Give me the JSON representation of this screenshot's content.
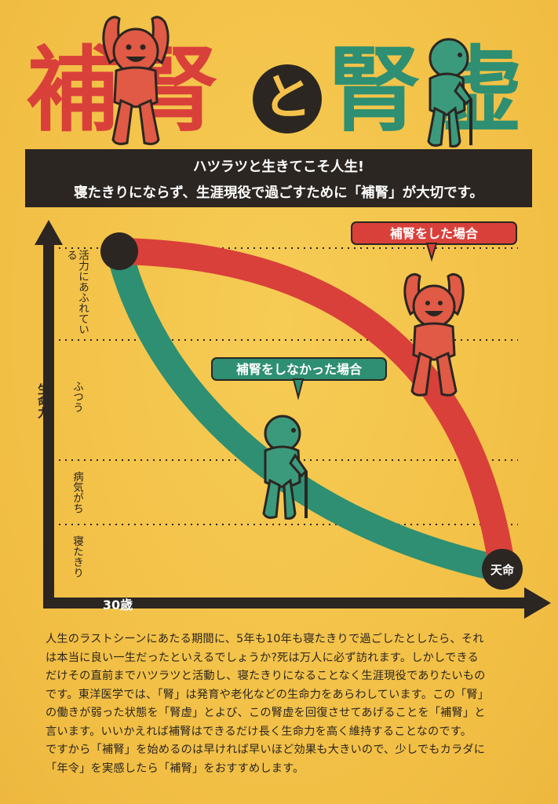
{
  "title": {
    "left_chars": [
      "補",
      "腎"
    ],
    "connector": "と",
    "right_chars": [
      "腎",
      "虚"
    ]
  },
  "banner": {
    "line1": "ハツラツと生きてこそ人生!",
    "line2": "寝たきりにならず、生涯現役で過ごすために「補腎」が大切です。"
  },
  "chart_data": {
    "type": "line",
    "ylabel": "生命力",
    "xlabel": "30歳",
    "end_label": "天命",
    "levels": [
      "活力にあふれている",
      "ふつう",
      "病気がち",
      "寝たきり"
    ],
    "series": [
      {
        "name": "補腎をした場合",
        "color": "#d9403a"
      },
      {
        "name": "補腎をしなかった場合",
        "color": "#2e8f72"
      }
    ]
  },
  "colors": {
    "red": "#d9403a",
    "green": "#2e8f72",
    "dark": "#2b2622",
    "background": "#f3c24a"
  },
  "body_text": [
    "人生のラストシーンにあたる期間に、5年も10年も寝たきりで過ごしたとしたら、それ",
    "は本当に良い一生だったといえるでしょうか?死は万人に必ず訪れます。しかしできる",
    "だけその直前までハツラツと活動し、寝たきりになることなく生涯現役でありたいもの",
    "です。東洋医学では、「腎」は発育や老化などの生命力をあらわしています。この「腎」",
    "の働きが弱った状態を「腎虚」とよび、この腎虚を回復させてあげることを「補腎」と",
    "言います。いいかえれば補腎はできるだけ長く生命力を高く維持することなのです。",
    "ですから「補腎」を始めるのは早ければ早いほど効果も大きいので、少しでもカラダに",
    "「年令」を実感したら「補腎」をおすすめします。"
  ]
}
